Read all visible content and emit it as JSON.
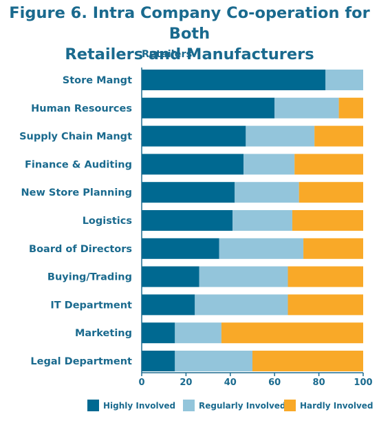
{
  "chart_data": {
    "type": "bar",
    "orientation": "horizontal",
    "stacked": true,
    "title_lines": [
      "Figure 6. Intra Company Co-operation for Both",
      "Retailers and Manufacturers"
    ],
    "subtitle": "Retailers",
    "categories": [
      "Store Mangt",
      "Human Resources",
      "Supply Chain Mangt",
      "Finance & Auditing",
      "New Store Planning",
      "Logistics",
      "Board of Directors",
      "Buying/Trading",
      "IT Department",
      "Marketing",
      "Legal Department"
    ],
    "series": [
      {
        "name": "Highly Involved",
        "color": "#006991",
        "values": [
          83,
          60,
          47,
          46,
          42,
          41,
          35,
          26,
          24,
          15,
          15
        ]
      },
      {
        "name": "Regularly Involved",
        "color": "#93c5db",
        "values": [
          17,
          29,
          31,
          23,
          29,
          27,
          38,
          40,
          42,
          21,
          35
        ]
      },
      {
        "name": "Hardly Involved",
        "color": "#f9a928",
        "values": [
          0,
          11,
          22,
          31,
          29,
          32,
          27,
          34,
          34,
          64,
          50
        ]
      }
    ],
    "xlim": [
      0,
      100
    ],
    "xticks": [
      "0",
      "20",
      "40",
      "60",
      "80",
      "100"
    ],
    "grid": false,
    "legend_position": "bottom"
  }
}
